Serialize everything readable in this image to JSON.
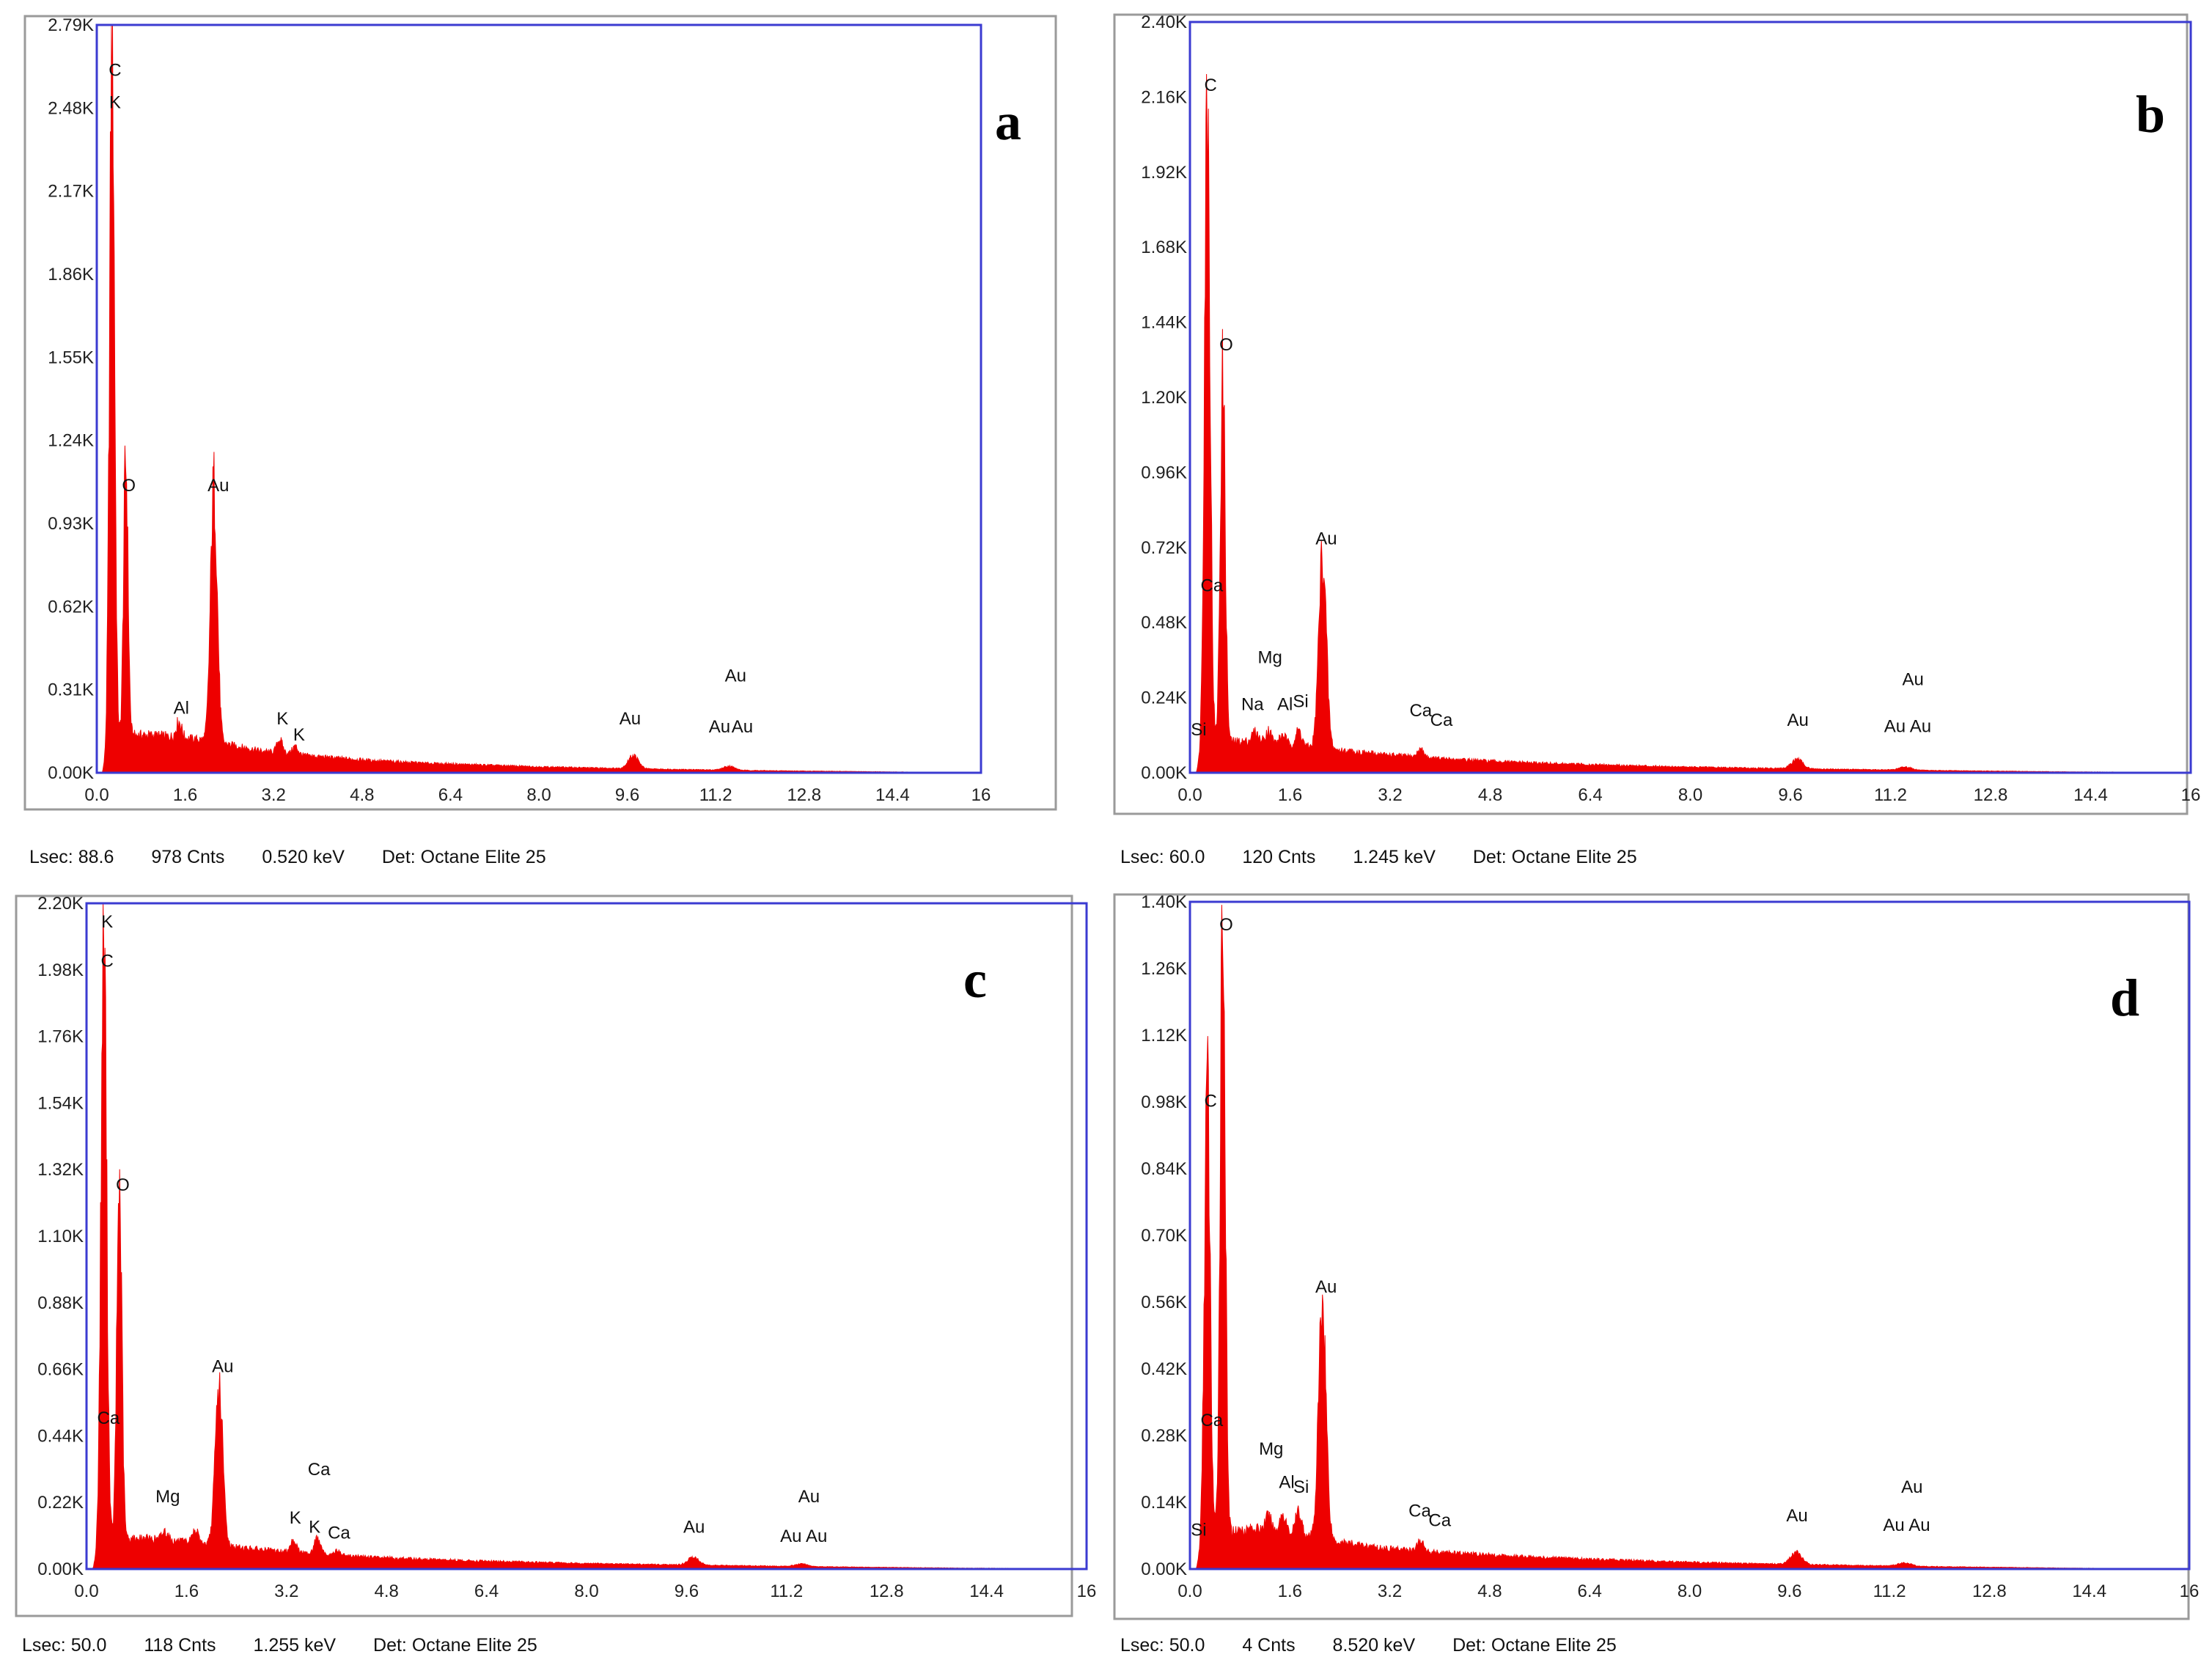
{
  "colors": {
    "spectrum": "#ee0000",
    "plot_border": "#3b3bd1",
    "frame_border": "#9a9a9a"
  },
  "chart_data": [
    {
      "type": "area",
      "panel_label": "a",
      "x_ticks": [
        "0.0",
        "1.6",
        "3.2",
        "4.8",
        "6.4",
        "8.0",
        "9.6",
        "11.2",
        "12.8",
        "14.4",
        "16"
      ],
      "y_ticks": [
        "0.00K",
        "0.31K",
        "0.62K",
        "0.93K",
        "1.24K",
        "1.55K",
        "1.86K",
        "2.17K",
        "2.48K",
        "2.79K"
      ],
      "xlim": [
        0,
        16
      ],
      "ylim": [
        0,
        2.79
      ],
      "peaks": [
        {
          "x": 0.277,
          "y": 2.62,
          "w": 0.045
        },
        {
          "x": 0.525,
          "y": 1.03,
          "w": 0.04
        },
        {
          "x": 1.486,
          "y": 0.06,
          "w": 0.05
        },
        {
          "x": 2.12,
          "y": 0.95,
          "w": 0.06
        },
        {
          "x": 3.31,
          "y": 0.05,
          "w": 0.05
        },
        {
          "x": 3.59,
          "y": 0.03,
          "w": 0.05
        },
        {
          "x": 9.71,
          "y": 0.05,
          "w": 0.09
        },
        {
          "x": 11.44,
          "y": 0.015,
          "w": 0.1
        }
      ],
      "background": [
        [
          0.1,
          0
        ],
        [
          0.2,
          0.08
        ],
        [
          0.4,
          0.12
        ],
        [
          0.7,
          0.14
        ],
        [
          1.0,
          0.14
        ],
        [
          1.5,
          0.13
        ],
        [
          2.0,
          0.12
        ],
        [
          2.5,
          0.1
        ],
        [
          3.0,
          0.08
        ],
        [
          4.0,
          0.06
        ],
        [
          5.0,
          0.045
        ],
        [
          6.0,
          0.035
        ],
        [
          8.0,
          0.022
        ],
        [
          10.0,
          0.014
        ],
        [
          12.0,
          0.008
        ],
        [
          14.0,
          0.004
        ],
        [
          15.0,
          0.002
        ],
        [
          15.2,
          0
        ]
      ],
      "labels": [
        {
          "text": "C",
          "x": 0.33,
          "y": 2.6
        },
        {
          "text": "K",
          "x": 0.33,
          "y": 2.48
        },
        {
          "text": "O",
          "x": 0.58,
          "y": 1.05
        },
        {
          "text": "Au",
          "x": 2.2,
          "y": 1.05
        },
        {
          "text": "Al",
          "x": 1.53,
          "y": 0.22
        },
        {
          "text": "K",
          "x": 3.36,
          "y": 0.18
        },
        {
          "text": "K",
          "x": 3.66,
          "y": 0.12
        },
        {
          "text": "Au",
          "x": 9.65,
          "y": 0.18
        },
        {
          "text": "Au",
          "x": 11.56,
          "y": 0.34
        },
        {
          "text": "Au",
          "x": 11.27,
          "y": 0.15
        },
        {
          "text": "Au",
          "x": 11.68,
          "y": 0.15
        }
      ],
      "status": {
        "lsec": "Lsec: 88.6",
        "cnts": "978 Cnts",
        "kev": "0.520 keV",
        "det": "Det: Octane Elite 25"
      }
    },
    {
      "type": "area",
      "panel_label": "b",
      "x_ticks": [
        "0.0",
        "1.6",
        "3.2",
        "4.8",
        "6.4",
        "8.0",
        "9.6",
        "11.2",
        "12.8",
        "14.4",
        "16"
      ],
      "y_ticks": [
        "0.00K",
        "0.24K",
        "0.48K",
        "0.72K",
        "0.96K",
        "1.20K",
        "1.44K",
        "1.68K",
        "1.92K",
        "2.16K",
        "2.40K"
      ],
      "xlim": [
        0,
        16
      ],
      "ylim": [
        0,
        2.4
      ],
      "peaks": [
        {
          "x": 0.277,
          "y": 2.11,
          "w": 0.045
        },
        {
          "x": 0.525,
          "y": 1.16,
          "w": 0.04
        },
        {
          "x": 1.04,
          "y": 0.03,
          "w": 0.05
        },
        {
          "x": 1.254,
          "y": 0.04,
          "w": 0.05
        },
        {
          "x": 1.486,
          "y": 0.03,
          "w": 0.05
        },
        {
          "x": 1.74,
          "y": 0.05,
          "w": 0.05
        },
        {
          "x": 2.12,
          "y": 0.62,
          "w": 0.06
        },
        {
          "x": 3.69,
          "y": 0.025,
          "w": 0.05
        },
        {
          "x": 9.71,
          "y": 0.03,
          "w": 0.09
        },
        {
          "x": 11.44,
          "y": 0.01,
          "w": 0.1
        }
      ],
      "background": [
        [
          0.1,
          0
        ],
        [
          0.2,
          0.06
        ],
        [
          0.4,
          0.09
        ],
        [
          0.7,
          0.1
        ],
        [
          1.0,
          0.1
        ],
        [
          1.5,
          0.09
        ],
        [
          2.0,
          0.08
        ],
        [
          2.5,
          0.07
        ],
        [
          3.0,
          0.06
        ],
        [
          4.0,
          0.045
        ],
        [
          5.0,
          0.035
        ],
        [
          6.0,
          0.028
        ],
        [
          8.0,
          0.018
        ],
        [
          10.0,
          0.012
        ],
        [
          12.0,
          0.007
        ],
        [
          14.0,
          0.003
        ],
        [
          15.0,
          0.002
        ],
        [
          15.2,
          0
        ]
      ],
      "labels": [
        {
          "text": "C",
          "x": 0.33,
          "y": 2.18
        },
        {
          "text": "O",
          "x": 0.58,
          "y": 1.35
        },
        {
          "text": "Ca",
          "x": 0.35,
          "y": 0.58
        },
        {
          "text": "Mg",
          "x": 1.28,
          "y": 0.35
        },
        {
          "text": "Na",
          "x": 1.0,
          "y": 0.2
        },
        {
          "text": "Al",
          "x": 1.52,
          "y": 0.2
        },
        {
          "text": "Si",
          "x": 1.77,
          "y": 0.21
        },
        {
          "text": "Si",
          "x": 0.14,
          "y": 0.12
        },
        {
          "text": "Au",
          "x": 2.18,
          "y": 0.73
        },
        {
          "text": "Ca",
          "x": 3.69,
          "y": 0.18
        },
        {
          "text": "Ca",
          "x": 4.02,
          "y": 0.15
        },
        {
          "text": "Au",
          "x": 9.72,
          "y": 0.15
        },
        {
          "text": "Au",
          "x": 11.56,
          "y": 0.28
        },
        {
          "text": "Au",
          "x": 11.27,
          "y": 0.13
        },
        {
          "text": "Au",
          "x": 11.68,
          "y": 0.13
        }
      ],
      "status": {
        "lsec": "Lsec: 60.0",
        "cnts": "120 Cnts",
        "kev": "1.245 keV",
        "det": "Det: Octane Elite 25"
      }
    },
    {
      "type": "area",
      "panel_label": "c",
      "x_ticks": [
        "0.0",
        "1.6",
        "3.2",
        "4.8",
        "6.4",
        "8.0",
        "9.6",
        "11.2",
        "12.8",
        "14.4",
        "16"
      ],
      "y_ticks": [
        "0.00K",
        "0.22K",
        "0.44K",
        "0.66K",
        "0.88K",
        "1.10K",
        "1.32K",
        "1.54K",
        "1.76K",
        "1.98K",
        "2.20K"
      ],
      "xlim": [
        0,
        16
      ],
      "ylim": [
        0,
        2.2
      ],
      "peaks": [
        {
          "x": 0.277,
          "y": 2.02,
          "w": 0.045
        },
        {
          "x": 0.525,
          "y": 1.16,
          "w": 0.04
        },
        {
          "x": 1.254,
          "y": 0.03,
          "w": 0.05
        },
        {
          "x": 1.74,
          "y": 0.04,
          "w": 0.05
        },
        {
          "x": 2.12,
          "y": 0.52,
          "w": 0.06
        },
        {
          "x": 3.31,
          "y": 0.04,
          "w": 0.05
        },
        {
          "x": 3.69,
          "y": 0.05,
          "w": 0.05
        },
        {
          "x": 4.01,
          "y": 0.015,
          "w": 0.05
        },
        {
          "x": 9.71,
          "y": 0.025,
          "w": 0.09
        },
        {
          "x": 11.44,
          "y": 0.008,
          "w": 0.1
        }
      ],
      "background": [
        [
          0.1,
          0
        ],
        [
          0.2,
          0.06
        ],
        [
          0.4,
          0.09
        ],
        [
          0.7,
          0.1
        ],
        [
          1.0,
          0.1
        ],
        [
          1.5,
          0.09
        ],
        [
          2.0,
          0.08
        ],
        [
          2.5,
          0.07
        ],
        [
          3.0,
          0.06
        ],
        [
          4.0,
          0.045
        ],
        [
          5.0,
          0.035
        ],
        [
          6.0,
          0.028
        ],
        [
          8.0,
          0.018
        ],
        [
          10.0,
          0.012
        ],
        [
          12.0,
          0.007
        ],
        [
          14.0,
          0.003
        ],
        [
          15.0,
          0.002
        ],
        [
          15.2,
          0
        ]
      ],
      "labels": [
        {
          "text": "K",
          "x": 0.33,
          "y": 2.12
        },
        {
          "text": "C",
          "x": 0.33,
          "y": 1.99
        },
        {
          "text": "O",
          "x": 0.58,
          "y": 1.25
        },
        {
          "text": "Ca",
          "x": 0.35,
          "y": 0.48
        },
        {
          "text": "Mg",
          "x": 1.3,
          "y": 0.22
        },
        {
          "text": "Au",
          "x": 2.18,
          "y": 0.65
        },
        {
          "text": "Ca",
          "x": 3.72,
          "y": 0.31
        },
        {
          "text": "K",
          "x": 3.34,
          "y": 0.15
        },
        {
          "text": "K",
          "x": 3.65,
          "y": 0.12
        },
        {
          "text": "Ca",
          "x": 4.04,
          "y": 0.1
        },
        {
          "text": "Au",
          "x": 9.72,
          "y": 0.12
        },
        {
          "text": "Au",
          "x": 11.56,
          "y": 0.22
        },
        {
          "text": "Au",
          "x": 11.27,
          "y": 0.09
        },
        {
          "text": "Au",
          "x": 11.68,
          "y": 0.09
        }
      ],
      "status": {
        "lsec": "Lsec: 50.0",
        "cnts": "118 Cnts",
        "kev": "1.255 keV",
        "det": "Det: Octane Elite 25"
      }
    },
    {
      "type": "area",
      "panel_label": "d",
      "x_ticks": [
        "0.0",
        "1.6",
        "3.2",
        "4.8",
        "6.4",
        "8.0",
        "9.6",
        "11.2",
        "12.8",
        "14.4",
        "16"
      ],
      "y_ticks": [
        "0.00K",
        "0.14K",
        "0.28K",
        "0.42K",
        "0.56K",
        "0.70K",
        "0.84K",
        "0.98K",
        "1.12K",
        "1.26K",
        "1.40K"
      ],
      "xlim": [
        0,
        16
      ],
      "ylim": [
        0,
        1.4
      ],
      "peaks": [
        {
          "x": 0.277,
          "y": 0.96,
          "w": 0.045
        },
        {
          "x": 0.525,
          "y": 1.33,
          "w": 0.04
        },
        {
          "x": 1.254,
          "y": 0.03,
          "w": 0.05
        },
        {
          "x": 1.486,
          "y": 0.04,
          "w": 0.05
        },
        {
          "x": 1.74,
          "y": 0.05,
          "w": 0.05
        },
        {
          "x": 2.12,
          "y": 0.5,
          "w": 0.06
        },
        {
          "x": 3.69,
          "y": 0.02,
          "w": 0.05
        },
        {
          "x": 9.71,
          "y": 0.025,
          "w": 0.09
        },
        {
          "x": 11.44,
          "y": 0.007,
          "w": 0.1
        }
      ],
      "background": [
        [
          0.1,
          0
        ],
        [
          0.2,
          0.05
        ],
        [
          0.4,
          0.07
        ],
        [
          0.7,
          0.08
        ],
        [
          1.0,
          0.085
        ],
        [
          1.5,
          0.075
        ],
        [
          2.0,
          0.065
        ],
        [
          2.5,
          0.055
        ],
        [
          3.0,
          0.045
        ],
        [
          4.0,
          0.035
        ],
        [
          5.0,
          0.028
        ],
        [
          6.0,
          0.022
        ],
        [
          8.0,
          0.014
        ],
        [
          10.0,
          0.009
        ],
        [
          12.0,
          0.005
        ],
        [
          14.0,
          0.002
        ],
        [
          15.0,
          0.001
        ],
        [
          15.2,
          0
        ]
      ],
      "labels": [
        {
          "text": "O",
          "x": 0.58,
          "y": 1.34
        },
        {
          "text": "C",
          "x": 0.33,
          "y": 0.97
        },
        {
          "text": "Ca",
          "x": 0.35,
          "y": 0.3
        },
        {
          "text": "Mg",
          "x": 1.3,
          "y": 0.24
        },
        {
          "text": "Al",
          "x": 1.55,
          "y": 0.17
        },
        {
          "text": "Si",
          "x": 1.78,
          "y": 0.16
        },
        {
          "text": "Si",
          "x": 0.14,
          "y": 0.07
        },
        {
          "text": "Au",
          "x": 2.18,
          "y": 0.58
        },
        {
          "text": "Ca",
          "x": 3.68,
          "y": 0.11
        },
        {
          "text": "Ca",
          "x": 4.0,
          "y": 0.09
        },
        {
          "text": "Au",
          "x": 9.72,
          "y": 0.1
        },
        {
          "text": "Au",
          "x": 11.56,
          "y": 0.16
        },
        {
          "text": "Au",
          "x": 11.27,
          "y": 0.08
        },
        {
          "text": "Au",
          "x": 11.68,
          "y": 0.08
        }
      ],
      "status": {
        "lsec": "Lsec: 50.0",
        "cnts": "4 Cnts",
        "kev": "8.520 keV",
        "det": "Det: Octane Elite 25"
      }
    }
  ]
}
